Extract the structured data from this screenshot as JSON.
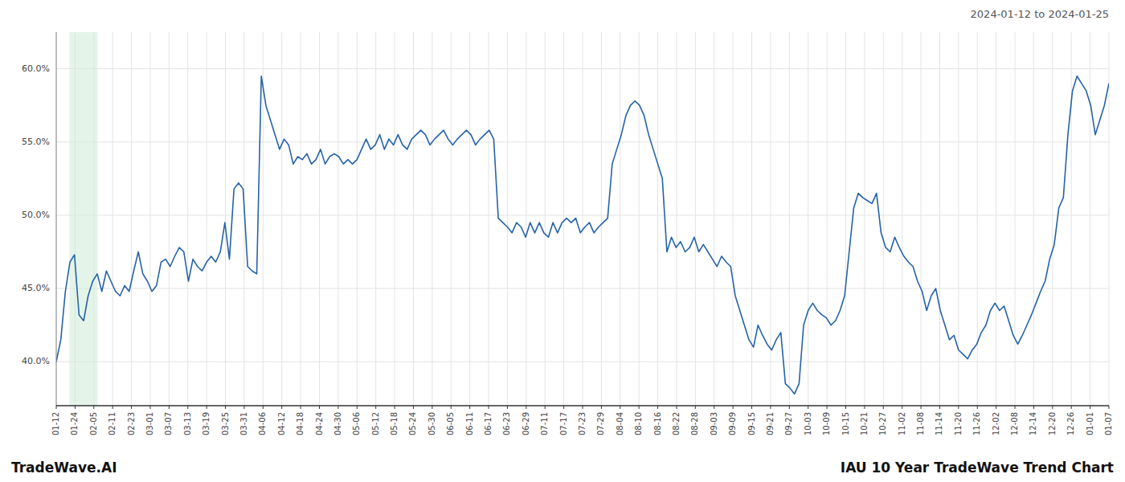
{
  "chart_data": {
    "type": "line",
    "title": "IAU 10 Year TradeWave Trend Chart",
    "subtitle": "2024-01-12 to 2024-01-25",
    "annotations": [
      "TradeWave.AI"
    ],
    "color": "#2563a8",
    "grid": true,
    "ylim": [
      37.0,
      62.5
    ],
    "yticks": [
      {
        "value": 40.0,
        "label": "40.0%"
      },
      {
        "value": 45.0,
        "label": "45.0%"
      },
      {
        "value": 50.0,
        "label": "50.0%"
      },
      {
        "value": 55.0,
        "label": "55.0%"
      },
      {
        "value": 60.0,
        "label": "60.0%"
      }
    ],
    "xlim": [
      0,
      56
    ],
    "xticks": [
      {
        "value": 0,
        "label": "01-12"
      },
      {
        "value": 1,
        "label": "01-24"
      },
      {
        "value": 2,
        "label": "02-05"
      },
      {
        "value": 3,
        "label": "02-11"
      },
      {
        "value": 4,
        "label": "02-23"
      },
      {
        "value": 5,
        "label": "03-01"
      },
      {
        "value": 6,
        "label": "03-07"
      },
      {
        "value": 7,
        "label": "03-13"
      },
      {
        "value": 8,
        "label": "03-19"
      },
      {
        "value": 9,
        "label": "03-25"
      },
      {
        "value": 10,
        "label": "03-31"
      },
      {
        "value": 11,
        "label": "04-06"
      },
      {
        "value": 12,
        "label": "04-12"
      },
      {
        "value": 13,
        "label": "04-18"
      },
      {
        "value": 14,
        "label": "04-24"
      },
      {
        "value": 15,
        "label": "04-30"
      },
      {
        "value": 16,
        "label": "05-06"
      },
      {
        "value": 17,
        "label": "05-12"
      },
      {
        "value": 18,
        "label": "05-18"
      },
      {
        "value": 19,
        "label": "05-24"
      },
      {
        "value": 20,
        "label": "05-30"
      },
      {
        "value": 21,
        "label": "06-05"
      },
      {
        "value": 22,
        "label": "06-11"
      },
      {
        "value": 23,
        "label": "06-17"
      },
      {
        "value": 24,
        "label": "06-23"
      },
      {
        "value": 25,
        "label": "06-29"
      },
      {
        "value": 26,
        "label": "07-11"
      },
      {
        "value": 27,
        "label": "07-17"
      },
      {
        "value": 28,
        "label": "07-23"
      },
      {
        "value": 29,
        "label": "07-29"
      },
      {
        "value": 30,
        "label": "08-04"
      },
      {
        "value": 31,
        "label": "08-10"
      },
      {
        "value": 32,
        "label": "08-16"
      },
      {
        "value": 33,
        "label": "08-22"
      },
      {
        "value": 34,
        "label": "08-28"
      },
      {
        "value": 35,
        "label": "09-03"
      },
      {
        "value": 36,
        "label": "09-09"
      },
      {
        "value": 37,
        "label": "09-15"
      },
      {
        "value": 38,
        "label": "09-21"
      },
      {
        "value": 39,
        "label": "09-27"
      },
      {
        "value": 40,
        "label": "10-03"
      },
      {
        "value": 41,
        "label": "10-09"
      },
      {
        "value": 42,
        "label": "10-15"
      },
      {
        "value": 43,
        "label": "10-21"
      },
      {
        "value": 44,
        "label": "10-27"
      },
      {
        "value": 45,
        "label": "11-02"
      },
      {
        "value": 46,
        "label": "11-08"
      },
      {
        "value": 47,
        "label": "11-14"
      },
      {
        "value": 48,
        "label": "11-20"
      },
      {
        "value": 49,
        "label": "11-26"
      },
      {
        "value": 50,
        "label": "12-02"
      },
      {
        "value": 51,
        "label": "12-08"
      },
      {
        "value": 52,
        "label": "12-14"
      },
      {
        "value": 53,
        "label": "12-20"
      },
      {
        "value": 54,
        "label": "12-26"
      },
      {
        "value": 55,
        "label": "01-01"
      },
      {
        "value": 56,
        "label": "01-07"
      }
    ],
    "shaded_span": [
      0.7,
      2.2
    ],
    "values": [
      40.0,
      41.5,
      44.8,
      46.8,
      47.3,
      43.2,
      42.8,
      44.5,
      45.5,
      46.0,
      44.8,
      46.2,
      45.5,
      44.8,
      44.5,
      45.2,
      44.8,
      46.2,
      47.5,
      46.0,
      45.5,
      44.8,
      45.2,
      46.8,
      47.0,
      46.5,
      47.2,
      47.8,
      47.5,
      45.5,
      47.0,
      46.5,
      46.2,
      46.8,
      47.2,
      46.8,
      47.5,
      49.5,
      47.0,
      51.8,
      52.2,
      51.8,
      46.5,
      46.2,
      46.0,
      59.5,
      57.5,
      56.5,
      55.5,
      54.5,
      55.2,
      54.8,
      53.5,
      54.0,
      53.8,
      54.2,
      53.5,
      53.8,
      54.5,
      53.5,
      54.0,
      54.2,
      54.0,
      53.5,
      53.8,
      53.5,
      53.8,
      54.5,
      55.2,
      54.5,
      54.8,
      55.5,
      54.5,
      55.2,
      54.8,
      55.5,
      54.8,
      54.5,
      55.2,
      55.5,
      55.8,
      55.5,
      54.8,
      55.2,
      55.5,
      55.8,
      55.2,
      54.8,
      55.2,
      55.5,
      55.8,
      55.5,
      54.8,
      55.2,
      55.5,
      55.8,
      55.2,
      49.8,
      49.5,
      49.2,
      48.8,
      49.5,
      49.2,
      48.5,
      49.5,
      48.8,
      49.5,
      48.8,
      48.5,
      49.5,
      48.8,
      49.5,
      49.8,
      49.5,
      49.8,
      48.8,
      49.2,
      49.5,
      48.8,
      49.2,
      49.5,
      49.8,
      53.5,
      54.5,
      55.5,
      56.8,
      57.5,
      57.8,
      57.5,
      56.8,
      55.5,
      54.5,
      53.5,
      52.5,
      47.5,
      48.5,
      47.8,
      48.2,
      47.5,
      47.8,
      48.5,
      47.5,
      48.0,
      47.5,
      47.0,
      46.5,
      47.2,
      46.8,
      46.5,
      44.5,
      43.5,
      42.5,
      41.5,
      41.0,
      42.5,
      41.8,
      41.2,
      40.8,
      41.5,
      42.0,
      38.5,
      38.2,
      37.8,
      38.5,
      42.5,
      43.5,
      44.0,
      43.5,
      43.2,
      43.0,
      42.5,
      42.8,
      43.5,
      44.5,
      47.5,
      50.5,
      51.5,
      51.2,
      51.0,
      50.8,
      51.5,
      48.8,
      47.8,
      47.5,
      48.5,
      47.8,
      47.2,
      46.8,
      46.5,
      45.5,
      44.8,
      43.5,
      44.5,
      45.0,
      43.5,
      42.5,
      41.5,
      41.8,
      40.8,
      40.5,
      40.2,
      40.8,
      41.2,
      42.0,
      42.5,
      43.5,
      44.0,
      43.5,
      43.8,
      42.8,
      41.8,
      41.2,
      41.8,
      42.5,
      43.2,
      44.0,
      44.8,
      45.5,
      47.0,
      48.0,
      50.5,
      51.2,
      55.5,
      58.5,
      59.5,
      59.0,
      58.5,
      57.5,
      55.5,
      56.5,
      57.5,
      59.0
    ]
  }
}
